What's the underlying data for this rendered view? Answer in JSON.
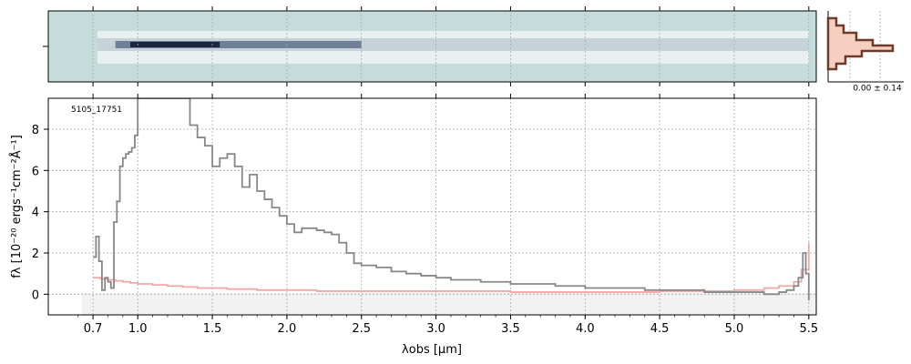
{
  "chart_data": [
    {
      "type": "heatmap",
      "description_panel": "2D spectrum",
      "colors": {
        "background": "#c6dcdb",
        "dark": "#1a2540",
        "light": "#ffffff"
      }
    },
    {
      "type": "line",
      "annotation": "5105_17751",
      "xlabel": "λobs [μm]",
      "ylabel": "fλ [10⁻²⁰ ergs⁻¹cm⁻²Å⁻¹]",
      "xticks": [
        "0.7",
        "1.0",
        "1.5",
        "2.0",
        "2.5",
        "3.0",
        "3.5",
        "4.0",
        "4.5",
        "5.0",
        "5.5"
      ],
      "yticks": [
        "0",
        "2",
        "4",
        "6",
        "8"
      ],
      "ylim": [
        -1,
        9.5
      ],
      "xlim": [
        0.4,
        5.55
      ],
      "grid": true,
      "series": [
        {
          "color": "#888888",
          "x": [
            0.7,
            0.72,
            0.74,
            0.76,
            0.78,
            0.8,
            0.82,
            0.84,
            0.86,
            0.88,
            0.9,
            0.92,
            0.94,
            0.96,
            0.98,
            1.0,
            1.05,
            1.1,
            1.15,
            1.2,
            1.25,
            1.3,
            1.35,
            1.4,
            1.45,
            1.5,
            1.55,
            1.6,
            1.65,
            1.7,
            1.75,
            1.8,
            1.85,
            1.9,
            1.95,
            2.0,
            2.05,
            2.1,
            2.15,
            2.2,
            2.25,
            2.3,
            2.35,
            2.4,
            2.45,
            2.5,
            2.6,
            2.7,
            2.8,
            2.9,
            3.0,
            3.1,
            3.2,
            3.3,
            3.4,
            3.5,
            3.6,
            3.7,
            3.8,
            3.9,
            4.0,
            4.1,
            4.2,
            4.3,
            4.4,
            4.5,
            4.6,
            4.7,
            4.8,
            4.9,
            5.0,
            5.1,
            5.2,
            5.3,
            5.35,
            5.4,
            5.43,
            5.46,
            5.48,
            5.5
          ],
          "y": [
            1.8,
            2.8,
            1.6,
            0.2,
            0.8,
            0.6,
            0.3,
            3.5,
            4.5,
            6.2,
            6.6,
            6.8,
            6.9,
            7.1,
            7.7,
            9.5,
            9.5,
            9.5,
            9.5,
            9.5,
            9.5,
            9.5,
            8.2,
            7.6,
            7.2,
            6.2,
            6.6,
            6.8,
            6.2,
            5.2,
            5.8,
            5.0,
            4.6,
            4.2,
            3.8,
            3.4,
            3.0,
            3.2,
            3.2,
            3.1,
            3.0,
            2.9,
            2.5,
            2.0,
            1.5,
            1.4,
            1.3,
            1.1,
            1.0,
            0.9,
            0.8,
            0.7,
            0.7,
            0.6,
            0.6,
            0.5,
            0.5,
            0.5,
            0.4,
            0.4,
            0.3,
            0.3,
            0.3,
            0.3,
            0.2,
            0.2,
            0.2,
            0.2,
            0.1,
            0.1,
            0.1,
            0.1,
            0.0,
            0.1,
            0.2,
            0.4,
            0.8,
            2.0,
            1.0,
            -0.3
          ]
        },
        {
          "color": "#f2a8a8",
          "x": [
            0.7,
            0.75,
            0.8,
            0.85,
            0.9,
            0.95,
            1.0,
            1.1,
            1.2,
            1.3,
            1.4,
            1.5,
            1.6,
            1.8,
            2.0,
            2.2,
            2.5,
            3.0,
            3.5,
            4.0,
            4.5,
            5.0,
            5.2,
            5.3,
            5.4,
            5.45,
            5.5
          ],
          "y": [
            0.8,
            0.75,
            0.7,
            0.65,
            0.6,
            0.55,
            0.5,
            0.45,
            0.4,
            0.35,
            0.3,
            0.3,
            0.25,
            0.2,
            0.2,
            0.15,
            0.15,
            0.15,
            0.1,
            0.1,
            0.15,
            0.2,
            0.3,
            0.4,
            0.6,
            1.2,
            2.5
          ]
        }
      ]
    },
    {
      "type": "bar",
      "annotation": "0.00 ± 0.14",
      "colors": {
        "edge": "#6b3a2a",
        "fill": "#f5d0c0"
      }
    }
  ]
}
